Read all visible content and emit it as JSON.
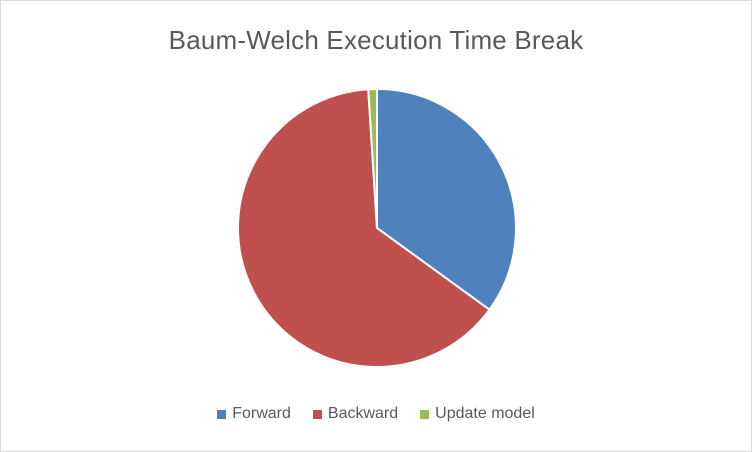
{
  "chart_data": {
    "type": "pie",
    "title": "Baum-Welch Execution Time Break",
    "categories": [
      "Forward",
      "Backward",
      "Update model"
    ],
    "values": [
      35,
      64,
      1
    ],
    "colors": [
      "#4f81bd",
      "#c0504d",
      "#9bbb59"
    ],
    "legend_position": "bottom",
    "start_angle_deg": 0,
    "direction": "clockwise"
  }
}
